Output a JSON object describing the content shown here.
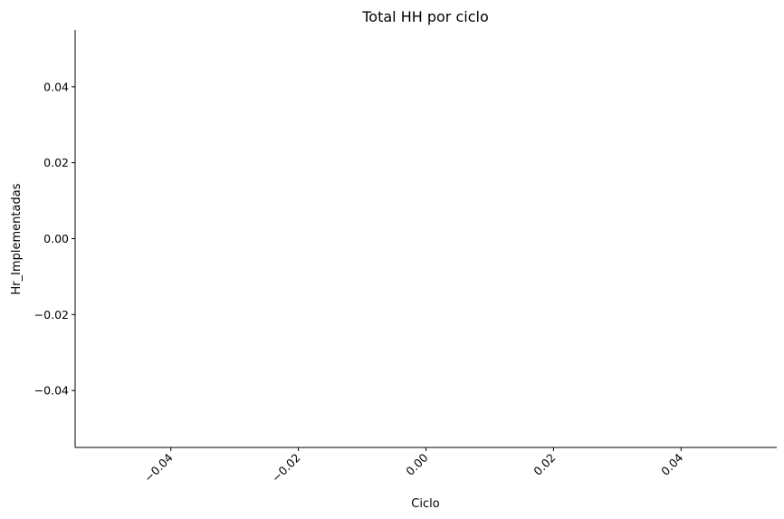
{
  "chart_data": {
    "type": "bar",
    "title": "Total HH por ciclo",
    "xlabel": "Ciclo",
    "ylabel": "Hr_Implementadas",
    "categories": [],
    "values": [],
    "xlim": [
      -0.055,
      0.055
    ],
    "ylim": [
      -0.055,
      0.055
    ],
    "x_ticks": [
      -0.04,
      -0.02,
      0.0,
      0.02,
      0.04
    ],
    "x_tick_labels": [
      "−0.04",
      "−0.02",
      "0.00",
      "0.02",
      "0.04"
    ],
    "y_ticks": [
      0.04,
      0.02,
      0.0,
      -0.02,
      -0.04
    ],
    "y_tick_labels": [
      "0.04",
      "0.02",
      "0.00",
      "−0.02",
      "−0.04"
    ],
    "x_tick_rotation": 45,
    "grid": false,
    "spines": [
      "left",
      "bottom"
    ]
  }
}
